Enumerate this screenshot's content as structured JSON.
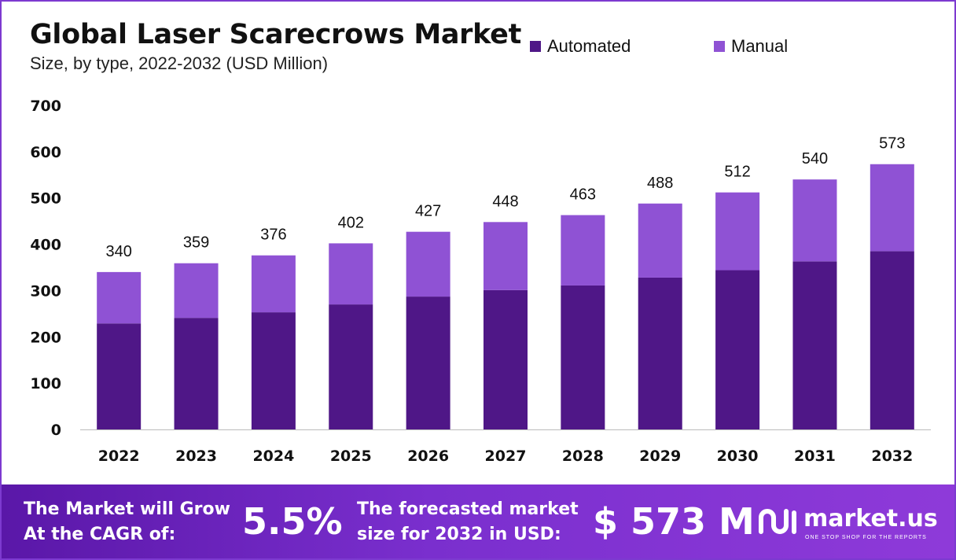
{
  "colors": {
    "automated": "#4f1787",
    "manual": "#8f52d4",
    "frame": "#7d3ad0",
    "axis": "#bbbbbb"
  },
  "legend": {
    "automated_label": "Automated",
    "manual_label": "Manual"
  },
  "banner": {
    "cagr_label": "The Market will Grow At the CAGR of:",
    "cagr_value": "5.5%",
    "forecast_label": "The forecasted market size for 2032 in USD:",
    "forecast_value": "$ 573 M",
    "brand_name": "market.us",
    "brand_tagline": "ONE STOP SHOP FOR THE REPORTS",
    "brand_icon": "market-us-logo-icon"
  },
  "chart_data": {
    "type": "bar",
    "stacked": true,
    "title": "Global Laser Scarecrows Market",
    "subtitle": "Size, by type, 2022-2032 (USD Million)",
    "xlabel": "",
    "ylabel": "",
    "ylim": [
      0,
      700
    ],
    "yticks": [
      0,
      100,
      200,
      300,
      400,
      500,
      600,
      700
    ],
    "grid": false,
    "legend_position": "top-right",
    "categories": [
      "2022",
      "2023",
      "2024",
      "2025",
      "2026",
      "2027",
      "2028",
      "2029",
      "2030",
      "2031",
      "2032"
    ],
    "series": [
      {
        "name": "Automated",
        "values": [
          229,
          241,
          253,
          270,
          287,
          301,
          311,
          328,
          344,
          363,
          385
        ]
      },
      {
        "name": "Manual",
        "values": [
          111,
          118,
          123,
          132,
          140,
          147,
          152,
          160,
          168,
          177,
          188
        ]
      }
    ],
    "totals": [
      340,
      359,
      376,
      402,
      427,
      448,
      463,
      488,
      512,
      540,
      573
    ]
  }
}
